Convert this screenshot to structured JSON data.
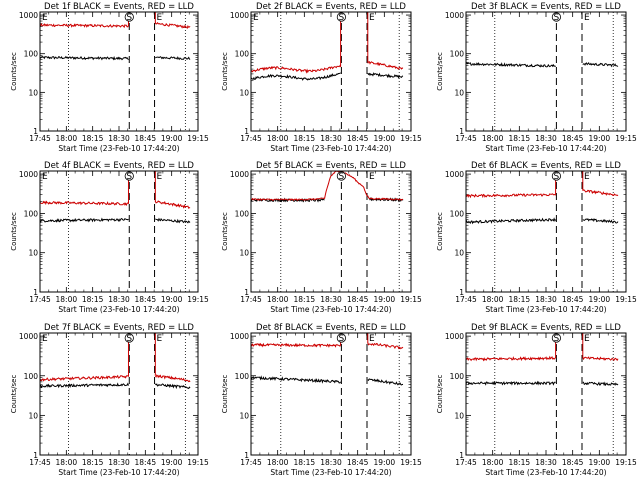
{
  "chart_data": [
    {
      "type": "line",
      "title": "Det 1f BLACK = Events, RED = LLD",
      "xlabel": "Start Time (23-Feb-10 17:44:20)",
      "ylabel": "Counts/sec",
      "x_ticks": [
        "17:45",
        "18:00",
        "18:15",
        "18:30",
        "18:45",
        "19:00",
        "19:15"
      ],
      "y_ticks": [
        "1",
        "10",
        "100",
        "1000"
      ],
      "y_scale": "log",
      "xlim": [
        0,
        100
      ],
      "ylim": [
        1,
        1200
      ],
      "dotted_x": [
        18,
        92
      ],
      "dashed_x": [
        56.5,
        72.5
      ],
      "markers": [
        {
          "label": "E",
          "x": 0
        },
        {
          "label": "S",
          "x": 56.5
        },
        {
          "label": "E",
          "x": 72.5
        }
      ],
      "series": [
        {
          "color": "#000000",
          "segments": [
            {
              "x0": 0,
              "x1": 56,
              "v0": 80,
              "v1": 75,
              "bump": 0
            },
            {
              "x0": 73,
              "x1": 95,
              "v0": 80,
              "v1": 75,
              "bump": 0
            }
          ]
        },
        {
          "color": "#cc0000",
          "segments": [
            {
              "x0": 0,
              "x1": 56,
              "v0": 550,
              "v1": 520,
              "bump": 0
            },
            {
              "x0": 73,
              "x1": 95,
              "v0": 600,
              "v1": 480,
              "bump": 0
            }
          ]
        }
      ]
    },
    {
      "type": "line",
      "title": "Det 2f BLACK = Events, RED = LLD",
      "xlabel": "Start Time (23-Feb-10 17:44:20)",
      "ylabel": "Counts/sec",
      "x_ticks": [
        "17:45",
        "18:00",
        "18:15",
        "18:30",
        "18:45",
        "19:00",
        "19:15"
      ],
      "y_ticks": [
        "1",
        "10",
        "100",
        "1000"
      ],
      "y_scale": "log",
      "xlim": [
        0,
        100
      ],
      "ylim": [
        1,
        1200
      ],
      "dotted_x": [
        18,
        92
      ],
      "dashed_x": [
        56.5,
        72.5
      ],
      "markers": [
        {
          "label": "E",
          "x": 0
        },
        {
          "label": "S",
          "x": 56.5
        },
        {
          "label": "E",
          "x": 72.5
        }
      ],
      "series": [
        {
          "color": "#000000",
          "segments": [
            {
              "x0": 0,
              "x1": 56,
              "v0": 22,
              "v1": 28,
              "bump": 0.15
            },
            {
              "x0": 73,
              "x1": 95,
              "v0": 30,
              "v1": 25,
              "bump": 0
            }
          ]
        },
        {
          "color": "#cc0000",
          "segments": [
            {
              "x0": 0,
              "x1": 56,
              "v0": 35,
              "v1": 45,
              "bump": 0.15
            },
            {
              "x0": 73,
              "x1": 95,
              "v0": 60,
              "v1": 40,
              "bump": 0
            }
          ]
        }
      ]
    },
    {
      "type": "line",
      "title": "Det 3f BLACK = Events, RED = LLD",
      "xlabel": "Start Time (23-Feb-10 17:44:20)",
      "ylabel": "Counts/sec",
      "x_ticks": [
        "17:45",
        "18:00",
        "18:15",
        "18:30",
        "18:45",
        "19:00",
        "19:15"
      ],
      "y_ticks": [
        "1",
        "10",
        "100",
        "1000"
      ],
      "y_scale": "log",
      "xlim": [
        0,
        100
      ],
      "ylim": [
        1,
        1200
      ],
      "dotted_x": [
        18,
        92
      ],
      "dashed_x": [
        56.5,
        72.5
      ],
      "markers": [
        {
          "label": "S",
          "x": 56.5
        },
        {
          "label": "E",
          "x": 72.5
        }
      ],
      "series": [
        {
          "color": "#000000",
          "segments": [
            {
              "x0": 0,
              "x1": 56,
              "v0": 55,
              "v1": 48,
              "bump": 0
            },
            {
              "x0": 73,
              "x1": 95,
              "v0": 55,
              "v1": 50,
              "bump": 0
            }
          ]
        }
      ]
    },
    {
      "type": "line",
      "title": "Det 4f BLACK = Events, RED = LLD",
      "xlabel": "Start Time (23-Feb-10 17:44:20)",
      "ylabel": "Counts/sec",
      "x_ticks": [
        "17:45",
        "18:00",
        "18:15",
        "18:30",
        "18:45",
        "19:00",
        "19:15"
      ],
      "y_ticks": [
        "1",
        "10",
        "100",
        "1000"
      ],
      "y_scale": "log",
      "xlim": [
        0,
        100
      ],
      "ylim": [
        1,
        1200
      ],
      "dotted_x": [
        18,
        92
      ],
      "dashed_x": [
        56.5,
        72.5
      ],
      "markers": [
        {
          "label": "E",
          "x": 0
        },
        {
          "label": "S",
          "x": 56.5
        },
        {
          "label": "E",
          "x": 72.5
        }
      ],
      "series": [
        {
          "color": "#000000",
          "segments": [
            {
              "x0": 0,
              "x1": 56,
              "v0": 65,
              "v1": 70,
              "bump": 0
            },
            {
              "x0": 73,
              "x1": 95,
              "v0": 70,
              "v1": 60,
              "bump": 0
            }
          ]
        },
        {
          "color": "#cc0000",
          "segments": [
            {
              "x0": 0,
              "x1": 56,
              "v0": 190,
              "v1": 175,
              "bump": 0
            },
            {
              "x0": 73,
              "x1": 95,
              "v0": 200,
              "v1": 140,
              "bump": 0
            }
          ]
        }
      ]
    },
    {
      "type": "line",
      "title": "Det 5f BLACK = Events, RED = LLD",
      "xlabel": "Start Time (23-Feb-10 17:44:20)",
      "ylabel": "Counts/sec",
      "x_ticks": [
        "17:45",
        "18:00",
        "18:15",
        "18:30",
        "18:45",
        "19:00",
        "19:15"
      ],
      "y_ticks": [
        "1",
        "10",
        "100",
        "1000"
      ],
      "y_scale": "log",
      "xlim": [
        0,
        100
      ],
      "ylim": [
        1,
        1200
      ],
      "dotted_x": [
        18,
        92
      ],
      "dashed_x": [
        56.5,
        72.5
      ],
      "markers": [
        {
          "label": "S",
          "x": 56.5
        },
        {
          "label": "E",
          "x": 72.5
        }
      ],
      "series": [
        {
          "color": "#000000",
          "segments": [
            {
              "x0": 0,
              "x1": 46,
              "v0": 220,
              "v1": 215,
              "bump": 0
            },
            {
              "x0": 74,
              "x1": 95,
              "v0": 230,
              "v1": 220,
              "bump": 0
            }
          ]
        },
        {
          "color": "#cc0000",
          "points": [
            [
              0,
              230
            ],
            [
              10,
              225
            ],
            [
              20,
              225
            ],
            [
              30,
              225
            ],
            [
              40,
              230
            ],
            [
              46,
              240
            ],
            [
              48,
              500
            ],
            [
              50,
              900
            ],
            [
              53,
              1150
            ],
            [
              56,
              1200
            ],
            [
              60,
              1000
            ],
            [
              64,
              800
            ],
            [
              67,
              600
            ],
            [
              70,
              500
            ],
            [
              72,
              300
            ],
            [
              74,
              240
            ],
            [
              80,
              235
            ],
            [
              90,
              230
            ],
            [
              95,
              225
            ]
          ]
        }
      ]
    },
    {
      "type": "line",
      "title": "Det 6f BLACK = Events, RED = LLD",
      "xlabel": "Start Time (23-Feb-10 17:44:20)",
      "ylabel": "Counts/sec",
      "x_ticks": [
        "17:45",
        "18:00",
        "18:15",
        "18:30",
        "18:45",
        "19:00",
        "19:15"
      ],
      "y_ticks": [
        "1",
        "10",
        "100",
        "1000"
      ],
      "y_scale": "log",
      "xlim": [
        0,
        100
      ],
      "ylim": [
        1,
        1200
      ],
      "dotted_x": [
        18,
        92
      ],
      "dashed_x": [
        56.5,
        72.5
      ],
      "markers": [
        {
          "label": "S",
          "x": 56.5
        },
        {
          "label": "E",
          "x": 72.5
        }
      ],
      "series": [
        {
          "color": "#000000",
          "segments": [
            {
              "x0": 0,
              "x1": 56,
              "v0": 60,
              "v1": 70,
              "bump": 0
            },
            {
              "x0": 73,
              "x1": 95,
              "v0": 70,
              "v1": 60,
              "bump": 0
            }
          ]
        },
        {
          "color": "#cc0000",
          "segments": [
            {
              "x0": 0,
              "x1": 56,
              "v0": 280,
              "v1": 300,
              "bump": 0
            },
            {
              "x0": 73,
              "x1": 95,
              "v0": 380,
              "v1": 290,
              "bump": 0
            }
          ]
        }
      ]
    },
    {
      "type": "line",
      "title": "Det 7f BLACK = Events, RED = LLD",
      "xlabel": "Start Time (23-Feb-10 17:44:20)",
      "ylabel": "Counts/sec",
      "x_ticks": [
        "17:45",
        "18:00",
        "18:15",
        "18:30",
        "18:45",
        "19:00",
        "19:15"
      ],
      "y_ticks": [
        "1",
        "10",
        "100",
        "1000"
      ],
      "y_scale": "log",
      "xlim": [
        0,
        100
      ],
      "ylim": [
        1,
        1200
      ],
      "dotted_x": [
        18,
        92
      ],
      "dashed_x": [
        56.5,
        72.5
      ],
      "markers": [
        {
          "label": "E",
          "x": 0
        },
        {
          "label": "S",
          "x": 56.5
        },
        {
          "label": "E",
          "x": 72.5
        }
      ],
      "series": [
        {
          "color": "#000000",
          "segments": [
            {
              "x0": 0,
              "x1": 56,
              "v0": 55,
              "v1": 60,
              "bump": 0
            },
            {
              "x0": 73,
              "x1": 95,
              "v0": 60,
              "v1": 50,
              "bump": 0
            }
          ]
        },
        {
          "color": "#cc0000",
          "segments": [
            {
              "x0": 0,
              "x1": 56,
              "v0": 80,
              "v1": 95,
              "bump": 0
            },
            {
              "x0": 73,
              "x1": 95,
              "v0": 100,
              "v1": 75,
              "bump": 0
            }
          ]
        }
      ]
    },
    {
      "type": "line",
      "title": "Det 8f BLACK = Events, RED = LLD",
      "xlabel": "Start Time (23-Feb-10 17:44:20)",
      "ylabel": "Counts/sec",
      "x_ticks": [
        "17:45",
        "18:00",
        "18:15",
        "18:30",
        "18:45",
        "19:00",
        "19:15"
      ],
      "y_ticks": [
        "1",
        "10",
        "100",
        "1000"
      ],
      "y_scale": "log",
      "xlim": [
        0,
        100
      ],
      "ylim": [
        1,
        1200
      ],
      "dotted_x": [
        18,
        92
      ],
      "dashed_x": [
        56.5,
        72.5
      ],
      "markers": [
        {
          "label": "S",
          "x": 56.5
        },
        {
          "label": "E",
          "x": 72.5
        }
      ],
      "series": [
        {
          "color": "#000000",
          "segments": [
            {
              "x0": 0,
              "x1": 56,
              "v0": 90,
              "v1": 70,
              "bump": 0
            },
            {
              "x0": 73,
              "x1": 95,
              "v0": 80,
              "v1": 60,
              "bump": 0
            }
          ]
        },
        {
          "color": "#cc0000",
          "segments": [
            {
              "x0": 0,
              "x1": 56,
              "v0": 600,
              "v1": 580,
              "bump": 0
            },
            {
              "x0": 73,
              "x1": 95,
              "v0": 650,
              "v1": 500,
              "bump": 0
            }
          ]
        }
      ]
    },
    {
      "type": "line",
      "title": "Det 9f BLACK = Events, RED = LLD",
      "xlabel": "Start Time (23-Feb-10 17:44:20)",
      "ylabel": "Counts/sec",
      "x_ticks": [
        "17:45",
        "18:00",
        "18:15",
        "18:30",
        "18:45",
        "19:00",
        "19:15"
      ],
      "y_ticks": [
        "1",
        "10",
        "100",
        "1000"
      ],
      "y_scale": "log",
      "xlim": [
        0,
        100
      ],
      "ylim": [
        1,
        1200
      ],
      "dotted_x": [
        18,
        92
      ],
      "dashed_x": [
        56.5,
        72.5
      ],
      "markers": [
        {
          "label": "S",
          "x": 56.5
        },
        {
          "label": "E",
          "x": 72.5
        }
      ],
      "series": [
        {
          "color": "#000000",
          "segments": [
            {
              "x0": 0,
              "x1": 56,
              "v0": 65,
              "v1": 65,
              "bump": 0
            },
            {
              "x0": 73,
              "x1": 95,
              "v0": 65,
              "v1": 60,
              "bump": 0
            }
          ]
        },
        {
          "color": "#cc0000",
          "segments": [
            {
              "x0": 0,
              "x1": 56,
              "v0": 260,
              "v1": 280,
              "bump": 0
            },
            {
              "x0": 73,
              "x1": 95,
              "v0": 280,
              "v1": 260,
              "bump": 0
            }
          ]
        }
      ]
    }
  ]
}
